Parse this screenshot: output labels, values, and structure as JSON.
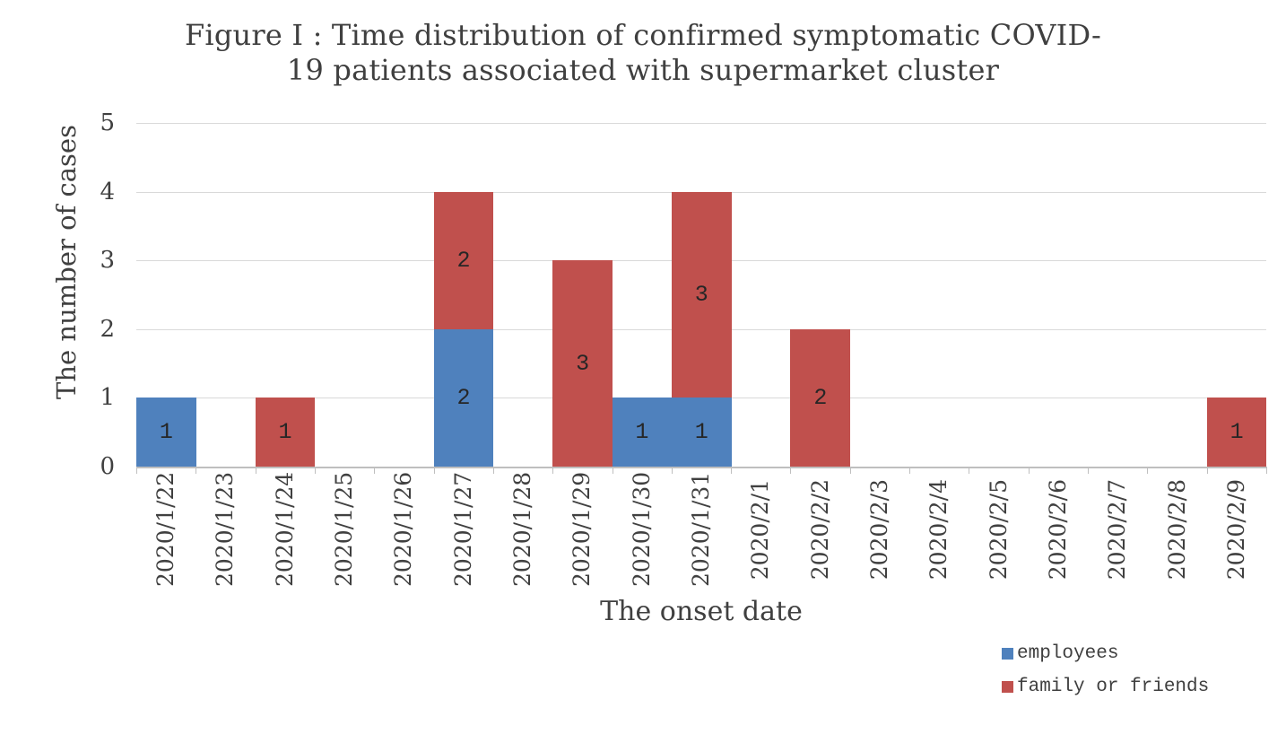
{
  "title": {
    "line1": "Figure I : Time distribution of confirmed symptomatic COVID-",
    "line2": "19 patients associated with supermarket cluster"
  },
  "colors": {
    "employees": "#4F81BD",
    "family_or_friends": "#C0504D",
    "gridline": "#D9D9D9",
    "axis": "#BFBFBF",
    "text": "#404040",
    "data_label": "#262626"
  },
  "legend": {
    "items": [
      {
        "label": "employees",
        "color": "#4F81BD"
      },
      {
        "label": "family or friends",
        "color": "#C0504D"
      }
    ]
  },
  "chart_data": {
    "type": "bar",
    "stacked": true,
    "title": "Figure I : Time distribution of confirmed symptomatic COVID-19 patients associated with supermarket cluster",
    "xlabel": "The onset date",
    "ylabel": "The number of cases",
    "categories": [
      "2020/1/22",
      "2020/1/23",
      "2020/1/24",
      "2020/1/25",
      "2020/1/26",
      "2020/1/27",
      "2020/1/28",
      "2020/1/29",
      "2020/1/30",
      "2020/1/31",
      "2020/2/1",
      "2020/2/2",
      "2020/2/3",
      "2020/2/4",
      "2020/2/5",
      "2020/2/6",
      "2020/2/7",
      "2020/2/8",
      "2020/2/9"
    ],
    "series": [
      {
        "name": "employees",
        "color": "#4F81BD",
        "values": [
          1,
          0,
          0,
          0,
          0,
          2,
          0,
          0,
          1,
          1,
          0,
          0,
          0,
          0,
          0,
          0,
          0,
          0,
          0
        ]
      },
      {
        "name": "family or friends",
        "color": "#C0504D",
        "values": [
          0,
          0,
          1,
          0,
          0,
          2,
          0,
          3,
          0,
          3,
          0,
          2,
          0,
          0,
          0,
          0,
          0,
          0,
          1
        ]
      }
    ],
    "ylim": [
      0,
      5
    ],
    "yticks": [
      0,
      1,
      2,
      3,
      4,
      5
    ],
    "grid": true,
    "legend_position": "bottom-right",
    "data_labels": true
  }
}
